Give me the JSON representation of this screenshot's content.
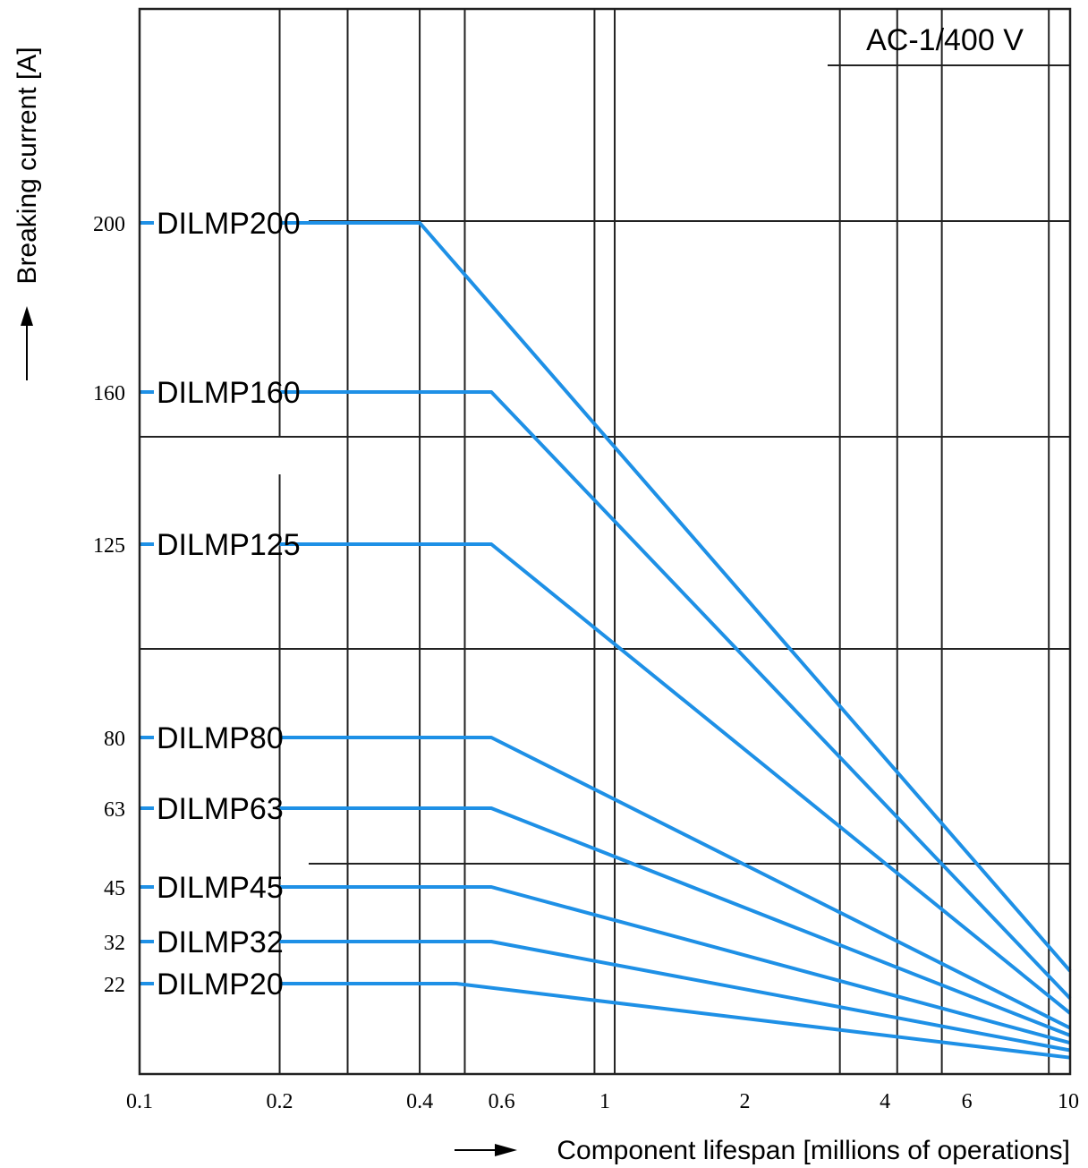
{
  "chart_data": {
    "type": "line",
    "title": "AC-1/400 V",
    "xlabel": "Component lifespan [millions of operations]",
    "ylabel": "Breaking current  [A]",
    "x_scale": "log",
    "xlim": [
      0.1,
      10
    ],
    "x_ticks": [
      "0.1",
      "0.2",
      "0.4",
      "0.6",
      "1",
      "2",
      "4",
      "6",
      "10"
    ],
    "y_ticks": [
      "200",
      "160",
      "125",
      "80",
      "63",
      "45",
      "32",
      "22"
    ],
    "grid": true,
    "line_color": "#1e90e6",
    "series": [
      {
        "name": "DILMP200",
        "rated_current": 200,
        "x": [
          0.2,
          0.4,
          10
        ],
        "y": [
          200,
          200,
          25
        ]
      },
      {
        "name": "DILMP160",
        "rated_current": 160,
        "x": [
          0.2,
          0.57,
          10
        ],
        "y": [
          160,
          160,
          18
        ]
      },
      {
        "name": "DILMP125",
        "rated_current": 125,
        "x": [
          0.2,
          0.57,
          10
        ],
        "y": [
          125,
          125,
          14
        ]
      },
      {
        "name": "DILMP80",
        "rated_current": 80,
        "x": [
          0.2,
          0.57,
          10
        ],
        "y": [
          80,
          80,
          10
        ]
      },
      {
        "name": "DILMP63",
        "rated_current": 63,
        "x": [
          0.2,
          0.57,
          10
        ],
        "y": [
          63,
          63,
          8
        ]
      },
      {
        "name": "DILMP45",
        "rated_current": 45,
        "x": [
          0.2,
          0.57,
          10
        ],
        "y": [
          45,
          45,
          6
        ]
      },
      {
        "name": "DILMP32",
        "rated_current": 32,
        "x": [
          0.2,
          0.57,
          10
        ],
        "y": [
          32,
          32,
          4
        ]
      },
      {
        "name": "DILMP20",
        "rated_current": 22,
        "x": [
          0.2,
          0.48,
          10
        ],
        "y": [
          22,
          22,
          2
        ]
      }
    ]
  }
}
